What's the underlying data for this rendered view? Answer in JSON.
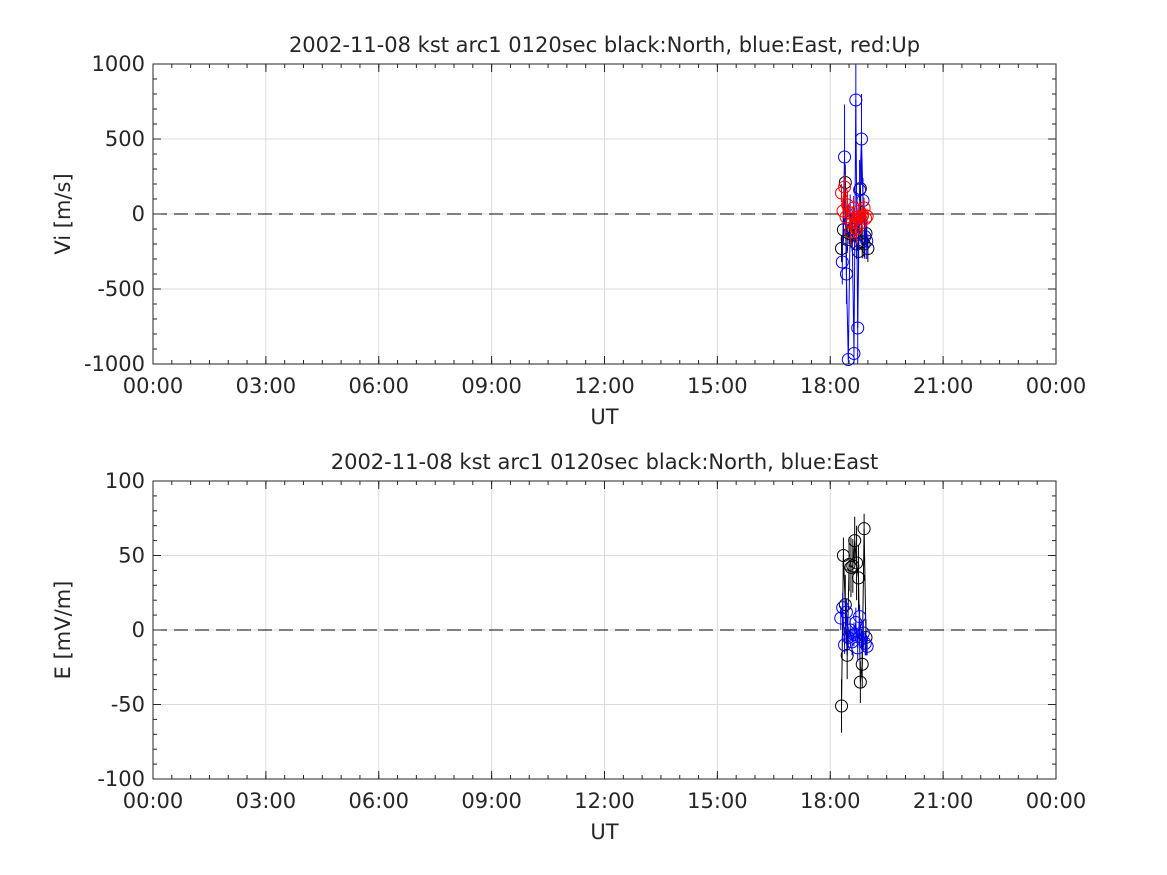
{
  "chart_data": [
    {
      "type": "scatter",
      "title": "2002-11-08 kst arc1 0120sec black:North, blue:East, red:Up",
      "xlabel": "UT",
      "ylabel": "Vi [m/s]",
      "xlim": [
        0,
        24
      ],
      "ylim": [
        -1000,
        1000
      ],
      "xticks": [
        0,
        3,
        6,
        9,
        12,
        15,
        18,
        21,
        24
      ],
      "xticklabels": [
        "00:00",
        "03:00",
        "06:00",
        "09:00",
        "12:00",
        "15:00",
        "18:00",
        "21:00",
        "00:00"
      ],
      "yticks": [
        -1000,
        -500,
        0,
        500,
        1000
      ],
      "yticklabels": [
        "-1000",
        "-500",
        "0",
        "500",
        "1000"
      ],
      "grid": true,
      "zero_line": "dashed",
      "series": [
        {
          "name": "North",
          "color": "#000000",
          "x": [
            18.3,
            18.35,
            18.4,
            18.45,
            18.5,
            18.55,
            18.6,
            18.65,
            18.7,
            18.75,
            18.8,
            18.85,
            18.9,
            18.95,
            19.0
          ],
          "y": [
            -230,
            -105,
            210,
            -170,
            -130,
            -50,
            -100,
            -140,
            -200,
            -250,
            170,
            -185,
            -200,
            -130,
            -230
          ],
          "err": [
            90,
            80,
            120,
            90,
            70,
            60,
            90,
            80,
            100,
            120,
            150,
            110,
            90,
            80,
            90
          ]
        },
        {
          "name": "East",
          "color": "#0000ff",
          "x": [
            18.32,
            18.38,
            18.43,
            18.48,
            18.53,
            18.58,
            18.63,
            18.68,
            18.73,
            18.78,
            18.83,
            18.87,
            18.92,
            18.97
          ],
          "y": [
            -320,
            380,
            -400,
            -970,
            -50,
            -100,
            -930,
            760,
            -760,
            160,
            500,
            90,
            -150,
            -180
          ],
          "err": [
            150,
            350,
            200,
            60,
            180,
            150,
            100,
            250,
            250,
            200,
            300,
            150,
            150,
            120
          ]
        },
        {
          "name": "Up",
          "color": "#ff0000",
          "x": [
            18.3,
            18.34,
            18.38,
            18.42,
            18.46,
            18.5,
            18.54,
            18.58,
            18.62,
            18.66,
            18.7,
            18.74,
            18.78,
            18.82,
            18.86,
            18.9,
            18.94,
            18.98
          ],
          "y": [
            140,
            20,
            180,
            -20,
            60,
            10,
            -120,
            -60,
            40,
            -80,
            -100,
            -20,
            20,
            -60,
            -10,
            40,
            -30,
            -15
          ],
          "err": [
            60,
            50,
            80,
            60,
            70,
            50,
            90,
            70,
            80,
            90,
            100,
            60,
            70,
            80,
            60,
            70,
            60,
            50
          ]
        }
      ]
    },
    {
      "type": "scatter",
      "title": "2002-11-08 kst arc1 0120sec black:North, blue:East",
      "xlabel": "UT",
      "ylabel": "E [mV/m]",
      "xlim": [
        0,
        24
      ],
      "ylim": [
        -100,
        100
      ],
      "xticks": [
        0,
        3,
        6,
        9,
        12,
        15,
        18,
        21,
        24
      ],
      "xticklabels": [
        "00:00",
        "03:00",
        "06:00",
        "09:00",
        "12:00",
        "15:00",
        "18:00",
        "21:00",
        "00:00"
      ],
      "yticks": [
        -100,
        -50,
        0,
        50,
        100
      ],
      "yticklabels": [
        "-100",
        "-50",
        "0",
        "50",
        "100"
      ],
      "grid": true,
      "zero_line": "dashed",
      "series": [
        {
          "name": "North",
          "color": "#000000",
          "x": [
            18.3,
            18.35,
            18.4,
            18.45,
            18.5,
            18.55,
            18.6,
            18.65,
            18.7,
            18.75,
            18.8,
            18.85,
            18.9,
            18.95
          ],
          "y": [
            -51,
            50,
            17,
            -17,
            44,
            42,
            43,
            60,
            45,
            35,
            -35,
            -23,
            68,
            -5
          ],
          "err": [
            18,
            12,
            20,
            16,
            18,
            20,
            18,
            16,
            25,
            22,
            14,
            16,
            10,
            12
          ]
        },
        {
          "name": "East",
          "color": "#0000ff",
          "x": [
            18.28,
            18.33,
            18.38,
            18.43,
            18.48,
            18.53,
            18.58,
            18.63,
            18.68,
            18.73,
            18.78,
            18.83,
            18.88,
            18.93,
            18.98
          ],
          "y": [
            8,
            15,
            -10,
            12,
            -5,
            0,
            -8,
            -3,
            5,
            -12,
            9,
            -6,
            -2,
            -9,
            -11
          ],
          "err": [
            8,
            10,
            6,
            9,
            7,
            8,
            9,
            8,
            10,
            9,
            8,
            7,
            9,
            8,
            6
          ]
        }
      ]
    }
  ]
}
